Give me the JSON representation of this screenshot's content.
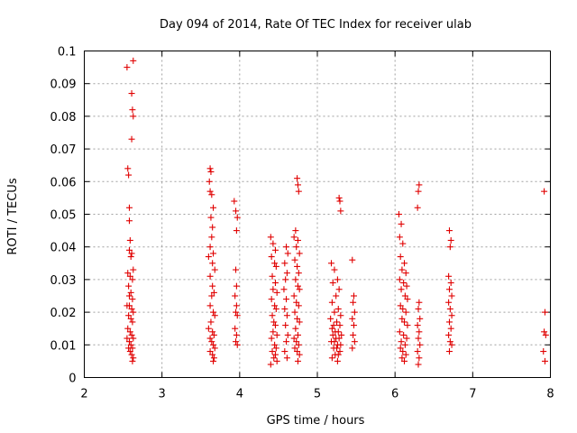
{
  "chart_data": {
    "type": "scatter",
    "title": "Day 094 of 2014, Rate Of TEC Index for receiver ulab",
    "xlabel": "GPS time / hours",
    "ylabel": "ROTI / TECUs",
    "xlim": [
      2,
      8
    ],
    "ylim": [
      0,
      0.1
    ],
    "grid": true,
    "marker": "+",
    "color": "#e00000",
    "x_ticks": [
      2,
      3,
      4,
      5,
      6,
      7,
      8
    ],
    "x_tick_labels": [
      "2",
      "3",
      "4",
      "5",
      "6",
      "7",
      "8"
    ],
    "y_ticks": [
      0,
      0.01,
      0.02,
      0.03,
      0.04,
      0.05,
      0.06,
      0.07,
      0.08,
      0.09,
      0.1
    ],
    "y_tick_labels": [
      "0",
      "0.01",
      "0.02",
      "0.03",
      "0.04",
      "0.05",
      "0.06",
      "0.07",
      "0.08",
      "0.09",
      "0.1"
    ],
    "series": [
      {
        "name": "ROTI",
        "points": [
          [
            2.55,
            0.095
          ],
          [
            2.63,
            0.097
          ],
          [
            2.61,
            0.087
          ],
          [
            2.62,
            0.082
          ],
          [
            2.63,
            0.08
          ],
          [
            2.61,
            0.073
          ],
          [
            2.56,
            0.064
          ],
          [
            2.57,
            0.062
          ],
          [
            2.58,
            0.052
          ],
          [
            2.58,
            0.048
          ],
          [
            2.59,
            0.042
          ],
          [
            2.58,
            0.039
          ],
          [
            2.61,
            0.038
          ],
          [
            2.6,
            0.037
          ],
          [
            2.63,
            0.033
          ],
          [
            2.56,
            0.032
          ],
          [
            2.59,
            0.031
          ],
          [
            2.62,
            0.03
          ],
          [
            2.57,
            0.028
          ],
          [
            2.6,
            0.026
          ],
          [
            2.58,
            0.025
          ],
          [
            2.62,
            0.024
          ],
          [
            2.55,
            0.022
          ],
          [
            2.58,
            0.022
          ],
          [
            2.61,
            0.021
          ],
          [
            2.63,
            0.02
          ],
          [
            2.57,
            0.019
          ],
          [
            2.6,
            0.018
          ],
          [
            2.62,
            0.017
          ],
          [
            2.56,
            0.015
          ],
          [
            2.59,
            0.014
          ],
          [
            2.61,
            0.013
          ],
          [
            2.63,
            0.012
          ],
          [
            2.55,
            0.012
          ],
          [
            2.58,
            0.011
          ],
          [
            2.6,
            0.01
          ],
          [
            2.62,
            0.009
          ],
          [
            2.57,
            0.009
          ],
          [
            2.59,
            0.008
          ],
          [
            2.61,
            0.007
          ],
          [
            2.63,
            0.006
          ],
          [
            2.62,
            0.005
          ],
          [
            3.62,
            0.064
          ],
          [
            3.63,
            0.063
          ],
          [
            3.61,
            0.06
          ],
          [
            3.62,
            0.057
          ],
          [
            3.64,
            0.056
          ],
          [
            3.66,
            0.052
          ],
          [
            3.63,
            0.049
          ],
          [
            3.65,
            0.046
          ],
          [
            3.64,
            0.043
          ],
          [
            3.62,
            0.04
          ],
          [
            3.66,
            0.038
          ],
          [
            3.6,
            0.037
          ],
          [
            3.65,
            0.035
          ],
          [
            3.68,
            0.033
          ],
          [
            3.62,
            0.031
          ],
          [
            3.65,
            0.028
          ],
          [
            3.67,
            0.026
          ],
          [
            3.64,
            0.025
          ],
          [
            3.62,
            0.022
          ],
          [
            3.66,
            0.02
          ],
          [
            3.68,
            0.019
          ],
          [
            3.63,
            0.017
          ],
          [
            3.6,
            0.015
          ],
          [
            3.65,
            0.014
          ],
          [
            3.67,
            0.013
          ],
          [
            3.62,
            0.012
          ],
          [
            3.64,
            0.011
          ],
          [
            3.66,
            0.01
          ],
          [
            3.68,
            0.009
          ],
          [
            3.62,
            0.008
          ],
          [
            3.65,
            0.007
          ],
          [
            3.67,
            0.006
          ],
          [
            3.66,
            0.005
          ],
          [
            3.93,
            0.054
          ],
          [
            3.95,
            0.051
          ],
          [
            3.97,
            0.049
          ],
          [
            3.96,
            0.045
          ],
          [
            3.95,
            0.033
          ],
          [
            3.96,
            0.028
          ],
          [
            3.94,
            0.025
          ],
          [
            3.96,
            0.022
          ],
          [
            3.95,
            0.02
          ],
          [
            3.97,
            0.019
          ],
          [
            3.94,
            0.015
          ],
          [
            3.96,
            0.013
          ],
          [
            3.95,
            0.011
          ],
          [
            3.97,
            0.01
          ],
          [
            4.4,
            0.043
          ],
          [
            4.43,
            0.041
          ],
          [
            4.46,
            0.039
          ],
          [
            4.41,
            0.037
          ],
          [
            4.45,
            0.035
          ],
          [
            4.47,
            0.034
          ],
          [
            4.42,
            0.031
          ],
          [
            4.46,
            0.029
          ],
          [
            4.43,
            0.027
          ],
          [
            4.48,
            0.026
          ],
          [
            4.41,
            0.024
          ],
          [
            4.45,
            0.022
          ],
          [
            4.47,
            0.021
          ],
          [
            4.42,
            0.019
          ],
          [
            4.44,
            0.017
          ],
          [
            4.46,
            0.016
          ],
          [
            4.43,
            0.014
          ],
          [
            4.48,
            0.013
          ],
          [
            4.41,
            0.012
          ],
          [
            4.45,
            0.01
          ],
          [
            4.47,
            0.009
          ],
          [
            4.42,
            0.008
          ],
          [
            4.46,
            0.007
          ],
          [
            4.44,
            0.006
          ],
          [
            4.48,
            0.005
          ],
          [
            4.4,
            0.004
          ],
          [
            4.6,
            0.04
          ],
          [
            4.62,
            0.038
          ],
          [
            4.58,
            0.035
          ],
          [
            4.61,
            0.032
          ],
          [
            4.59,
            0.03
          ],
          [
            4.57,
            0.027
          ],
          [
            4.6,
            0.024
          ],
          [
            4.58,
            0.021
          ],
          [
            4.61,
            0.019
          ],
          [
            4.59,
            0.016
          ],
          [
            4.62,
            0.013
          ],
          [
            4.6,
            0.011
          ],
          [
            4.58,
            0.008
          ],
          [
            4.61,
            0.006
          ],
          [
            4.7,
            0.043
          ],
          [
            4.74,
            0.061
          ],
          [
            4.75,
            0.059
          ],
          [
            4.76,
            0.057
          ],
          [
            4.72,
            0.045
          ],
          [
            4.75,
            0.042
          ],
          [
            4.73,
            0.04
          ],
          [
            4.77,
            0.038
          ],
          [
            4.71,
            0.036
          ],
          [
            4.74,
            0.034
          ],
          [
            4.76,
            0.032
          ],
          [
            4.72,
            0.03
          ],
          [
            4.75,
            0.028
          ],
          [
            4.77,
            0.027
          ],
          [
            4.7,
            0.025
          ],
          [
            4.73,
            0.023
          ],
          [
            4.76,
            0.022
          ],
          [
            4.71,
            0.02
          ],
          [
            4.74,
            0.018
          ],
          [
            4.77,
            0.017
          ],
          [
            4.72,
            0.015
          ],
          [
            4.75,
            0.013
          ],
          [
            4.7,
            0.012
          ],
          [
            4.73,
            0.011
          ],
          [
            4.76,
            0.01
          ],
          [
            4.71,
            0.009
          ],
          [
            4.74,
            0.008
          ],
          [
            4.77,
            0.007
          ],
          [
            4.75,
            0.005
          ],
          [
            5.18,
            0.035
          ],
          [
            5.22,
            0.033
          ],
          [
            5.26,
            0.03
          ],
          [
            5.2,
            0.029
          ],
          [
            5.28,
            0.027
          ],
          [
            5.24,
            0.025
          ],
          [
            5.19,
            0.023
          ],
          [
            5.27,
            0.021
          ],
          [
            5.22,
            0.02
          ],
          [
            5.3,
            0.019
          ],
          [
            5.17,
            0.018
          ],
          [
            5.25,
            0.017
          ],
          [
            5.21,
            0.016
          ],
          [
            5.29,
            0.016
          ],
          [
            5.19,
            0.015
          ],
          [
            5.23,
            0.014
          ],
          [
            5.27,
            0.014
          ],
          [
            5.31,
            0.013
          ],
          [
            5.2,
            0.013
          ],
          [
            5.24,
            0.012
          ],
          [
            5.28,
            0.012
          ],
          [
            5.18,
            0.011
          ],
          [
            5.22,
            0.011
          ],
          [
            5.26,
            0.01
          ],
          [
            5.3,
            0.01
          ],
          [
            5.21,
            0.009
          ],
          [
            5.25,
            0.009
          ],
          [
            5.29,
            0.008
          ],
          [
            5.23,
            0.007
          ],
          [
            5.27,
            0.007
          ],
          [
            5.19,
            0.006
          ],
          [
            5.26,
            0.005
          ],
          [
            5.28,
            0.055
          ],
          [
            5.29,
            0.054
          ],
          [
            5.3,
            0.051
          ],
          [
            5.45,
            0.036
          ],
          [
            5.47,
            0.025
          ],
          [
            5.46,
            0.023
          ],
          [
            5.48,
            0.02
          ],
          [
            5.45,
            0.018
          ],
          [
            5.47,
            0.016
          ],
          [
            5.46,
            0.013
          ],
          [
            5.48,
            0.011
          ],
          [
            5.45,
            0.009
          ],
          [
            6.05,
            0.05
          ],
          [
            6.08,
            0.047
          ],
          [
            6.06,
            0.043
          ],
          [
            6.1,
            0.041
          ],
          [
            6.07,
            0.037
          ],
          [
            6.12,
            0.035
          ],
          [
            6.09,
            0.033
          ],
          [
            6.14,
            0.032
          ],
          [
            6.06,
            0.03
          ],
          [
            6.11,
            0.029
          ],
          [
            6.15,
            0.028
          ],
          [
            6.08,
            0.027
          ],
          [
            6.13,
            0.025
          ],
          [
            6.16,
            0.024
          ],
          [
            6.07,
            0.022
          ],
          [
            6.1,
            0.021
          ],
          [
            6.14,
            0.02
          ],
          [
            6.09,
            0.018
          ],
          [
            6.12,
            0.017
          ],
          [
            6.16,
            0.016
          ],
          [
            6.06,
            0.014
          ],
          [
            6.11,
            0.013
          ],
          [
            6.15,
            0.012
          ],
          [
            6.08,
            0.011
          ],
          [
            6.13,
            0.01
          ],
          [
            6.07,
            0.009
          ],
          [
            6.1,
            0.008
          ],
          [
            6.14,
            0.007
          ],
          [
            6.09,
            0.006
          ],
          [
            6.12,
            0.005
          ],
          [
            6.31,
            0.059
          ],
          [
            6.3,
            0.057
          ],
          [
            6.29,
            0.052
          ],
          [
            6.31,
            0.023
          ],
          [
            6.3,
            0.021
          ],
          [
            6.32,
            0.018
          ],
          [
            6.29,
            0.016
          ],
          [
            6.31,
            0.014
          ],
          [
            6.3,
            0.012
          ],
          [
            6.32,
            0.01
          ],
          [
            6.29,
            0.008
          ],
          [
            6.31,
            0.006
          ],
          [
            6.3,
            0.004
          ],
          [
            6.7,
            0.045
          ],
          [
            6.72,
            0.042
          ],
          [
            6.71,
            0.04
          ],
          [
            6.69,
            0.031
          ],
          [
            6.72,
            0.029
          ],
          [
            6.7,
            0.027
          ],
          [
            6.73,
            0.025
          ],
          [
            6.69,
            0.023
          ],
          [
            6.71,
            0.021
          ],
          [
            6.73,
            0.019
          ],
          [
            6.7,
            0.017
          ],
          [
            6.72,
            0.015
          ],
          [
            6.69,
            0.013
          ],
          [
            6.71,
            0.011
          ],
          [
            6.73,
            0.01
          ],
          [
            6.7,
            0.008
          ],
          [
            7.92,
            0.057
          ],
          [
            7.93,
            0.02
          ],
          [
            7.92,
            0.014
          ],
          [
            7.94,
            0.013
          ],
          [
            7.91,
            0.008
          ],
          [
            7.93,
            0.005
          ]
        ]
      }
    ]
  }
}
